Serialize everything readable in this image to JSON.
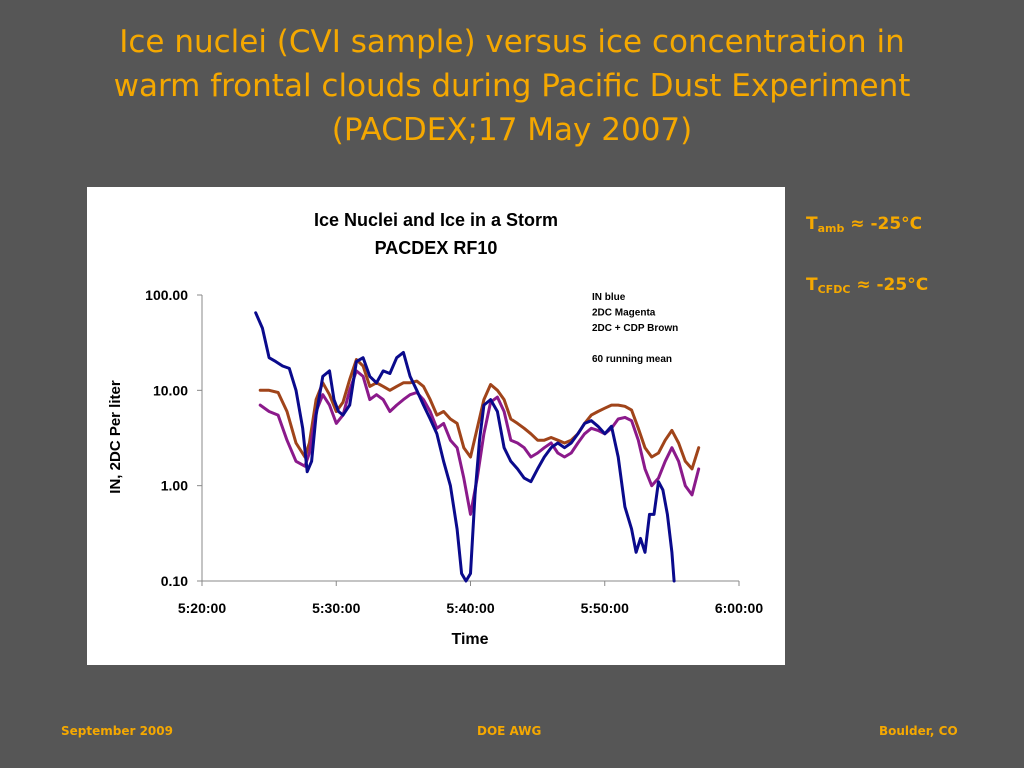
{
  "slide": {
    "title_line1": "Ice nuclei (CVI sample) versus ice concentration in",
    "title_line2": "warm frontal clouds during Pacific Dust Experiment",
    "title_line3": "(PACDEX;17 May 2007)"
  },
  "side_notes": [
    {
      "main": "T",
      "sub": "amb",
      "rest": " ≈ -25°C"
    },
    {
      "main": "T",
      "sub": "CFDC",
      "rest": " ≈ -25°C"
    }
  ],
  "footer": {
    "left": "September 2009",
    "center": "DOE AWG",
    "right": "Boulder, CO"
  },
  "colors": {
    "title": "#f5a800",
    "background": "#565656",
    "in_series": "#0a0a8c",
    "dc2_series": "#8b1a8b",
    "dc2_cdp_series": "#a0441a"
  },
  "chart_data": {
    "type": "line",
    "title_line1": "Ice Nuclei and Ice in a Storm",
    "title_line2": "PACDEX RF10",
    "xlabel": "Time",
    "ylabel": "IN, 2DC Per liter",
    "y_scale": "log",
    "ylim": [
      0.1,
      100
    ],
    "xlim": [
      "5:20:00",
      "6:00:00"
    ],
    "x_ticks": [
      "5:20:00",
      "5:30:00",
      "5:40:00",
      "5:50:00",
      "6:00:00"
    ],
    "y_ticks": [
      "100.00",
      "10.00",
      "1.00",
      "0.10"
    ],
    "y_tick_values": [
      100,
      10,
      1,
      0.1
    ],
    "legend_notes": [
      "IN blue",
      "2DC Magenta",
      "2DC + CDP Brown",
      "",
      "60 running mean"
    ],
    "legend_position": "top-right",
    "series": [
      {
        "name": "IN",
        "color": "#0a0a8c",
        "x": [
          "5:24:00",
          "5:24:30",
          "5:25:00",
          "5:25:30",
          "5:26:00",
          "5:26:30",
          "5:27:00",
          "5:27:30",
          "5:27:50",
          "5:28:10",
          "5:28:30",
          "5:29:00",
          "5:29:30",
          "5:29:50",
          "5:30:10",
          "5:30:30",
          "5:31:00",
          "5:31:30",
          "5:32:00",
          "5:32:30",
          "5:33:00",
          "5:33:30",
          "5:34:00",
          "5:34:30",
          "5:35:00",
          "5:35:30",
          "5:36:00",
          "5:36:30",
          "5:37:00",
          "5:37:30",
          "5:38:00",
          "5:38:30",
          "5:39:00",
          "5:39:20",
          "5:39:40",
          "5:40:00",
          "5:40:20",
          "5:40:40",
          "5:41:00",
          "5:41:30",
          "5:42:00",
          "5:42:30",
          "5:43:00",
          "5:43:30",
          "5:44:00",
          "5:44:30",
          "5:45:00",
          "5:45:30",
          "5:46:00",
          "5:46:30",
          "5:47:00",
          "5:47:30",
          "5:48:00",
          "5:48:30",
          "5:49:00",
          "5:49:30",
          "5:50:00",
          "5:50:30",
          "5:51:00",
          "5:51:30",
          "5:52:00",
          "5:52:20",
          "5:52:40",
          "5:53:00",
          "5:53:20",
          "5:53:40",
          "5:54:00",
          "5:54:20",
          "5:54:40",
          "5:55:00",
          "5:55:10"
        ],
        "values": [
          65,
          45,
          22,
          20,
          18,
          17,
          10,
          4,
          1.4,
          1.8,
          5.5,
          14,
          16,
          8,
          6,
          5.5,
          7,
          20,
          22,
          14,
          12,
          16,
          15,
          22,
          25,
          14,
          10,
          7,
          5,
          3.5,
          1.8,
          1,
          0.35,
          0.12,
          0.1,
          0.12,
          0.8,
          3,
          7,
          8,
          6,
          2.5,
          1.8,
          1.5,
          1.2,
          1.1,
          1.5,
          2,
          2.5,
          2.8,
          2.5,
          2.8,
          3.5,
          4.5,
          4.8,
          4.2,
          3.5,
          4.2,
          2,
          0.6,
          0.35,
          0.2,
          0.28,
          0.2,
          0.5,
          0.5,
          1.1,
          0.9,
          0.5,
          0.2,
          0.1
        ]
      },
      {
        "name": "2DC",
        "color": "#8b1a8b",
        "x": [
          "5:24:20",
          "5:25:00",
          "5:25:40",
          "5:26:20",
          "5:27:00",
          "5:27:40",
          "5:28:00",
          "5:28:30",
          "5:29:00",
          "5:29:30",
          "5:30:00",
          "5:30:30",
          "5:31:00",
          "5:31:30",
          "5:32:00",
          "5:32:30",
          "5:33:00",
          "5:33:30",
          "5:34:00",
          "5:34:30",
          "5:35:00",
          "5:35:30",
          "5:36:00",
          "5:36:30",
          "5:37:00",
          "5:37:30",
          "5:38:00",
          "5:38:30",
          "5:39:00",
          "5:39:30",
          "5:40:00",
          "5:40:30",
          "5:41:00",
          "5:41:30",
          "5:42:00",
          "5:42:30",
          "5:43:00",
          "5:43:30",
          "5:44:00",
          "5:44:30",
          "5:45:00",
          "5:45:30",
          "5:46:00",
          "5:46:30",
          "5:47:00",
          "5:47:30",
          "5:48:00",
          "5:48:30",
          "5:49:00",
          "5:49:30",
          "5:50:00",
          "5:50:30",
          "5:51:00",
          "5:51:30",
          "5:52:00",
          "5:52:30",
          "5:53:00",
          "5:53:30",
          "5:54:00",
          "5:54:30",
          "5:55:00",
          "5:55:30",
          "5:56:00",
          "5:56:30",
          "5:57:00"
        ],
        "values": [
          7,
          6,
          5.5,
          3,
          1.8,
          1.6,
          2.2,
          6,
          9,
          7,
          4.5,
          5.5,
          10,
          16,
          14,
          8,
          9,
          8,
          6,
          7,
          8,
          9,
          9.5,
          8,
          6,
          4,
          4.5,
          3,
          2.5,
          1.2,
          0.5,
          1.2,
          3.5,
          7.5,
          8.5,
          6,
          3,
          2.8,
          2.5,
          2,
          2.2,
          2.5,
          2.8,
          2.2,
          2,
          2.2,
          2.8,
          3.5,
          4,
          3.8,
          3.5,
          4,
          5,
          5.2,
          4.8,
          3,
          1.5,
          1,
          1.2,
          1.8,
          2.5,
          1.8,
          1,
          0.8,
          1.5
        ]
      },
      {
        "name": "2DC + CDP",
        "color": "#a0441a",
        "x": [
          "5:24:20",
          "5:25:00",
          "5:25:40",
          "5:26:20",
          "5:27:00",
          "5:27:40",
          "5:28:00",
          "5:28:30",
          "5:29:00",
          "5:29:30",
          "5:30:00",
          "5:30:30",
          "5:31:00",
          "5:31:30",
          "5:32:00",
          "5:32:30",
          "5:33:00",
          "5:33:30",
          "5:34:00",
          "5:34:30",
          "5:35:00",
          "5:35:30",
          "5:36:00",
          "5:36:30",
          "5:37:00",
          "5:37:30",
          "5:38:00",
          "5:38:30",
          "5:39:00",
          "5:39:30",
          "5:40:00",
          "5:40:30",
          "5:41:00",
          "5:41:30",
          "5:42:00",
          "5:42:30",
          "5:43:00",
          "5:43:30",
          "5:44:00",
          "5:44:30",
          "5:45:00",
          "5:45:30",
          "5:46:00",
          "5:46:30",
          "5:47:00",
          "5:47:30",
          "5:48:00",
          "5:48:30",
          "5:49:00",
          "5:49:30",
          "5:50:00",
          "5:50:30",
          "5:51:00",
          "5:51:30",
          "5:52:00",
          "5:52:30",
          "5:53:00",
          "5:53:30",
          "5:54:00",
          "5:54:30",
          "5:55:00",
          "5:55:30",
          "5:56:00",
          "5:56:30",
          "5:57:00"
        ],
        "values": [
          10,
          10,
          9.5,
          6,
          2.8,
          2,
          2.8,
          8,
          12,
          9,
          6,
          7.5,
          13,
          21,
          18,
          11,
          12,
          11,
          10,
          11,
          12,
          12,
          12.5,
          11,
          8,
          5.5,
          6,
          5,
          4.5,
          2.5,
          2,
          4,
          8,
          11.5,
          10,
          8,
          5,
          4.5,
          4,
          3.5,
          3,
          3,
          3.2,
          3,
          2.8,
          3,
          3.5,
          4.5,
          5.5,
          6,
          6.5,
          7,
          7,
          6.8,
          6.2,
          4,
          2.5,
          2,
          2.2,
          3,
          3.8,
          2.8,
          1.8,
          1.5,
          2.5
        ]
      }
    ]
  }
}
